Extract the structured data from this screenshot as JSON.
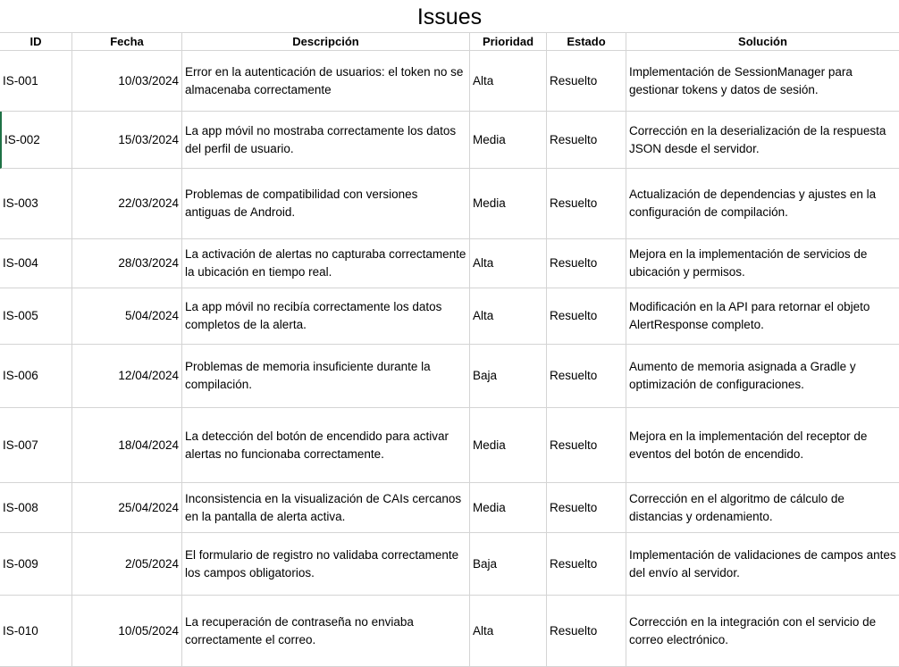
{
  "sheet": {
    "title": "Issues"
  },
  "columns": [
    "ID",
    "Fecha",
    "Descripción",
    "Prioridad",
    "Estado",
    "Solución"
  ],
  "rows": [
    {
      "id": "IS-001",
      "fecha": "10/03/2024",
      "desc": "Error en la autenticación de usuarios: el token no se almacenaba correctamente",
      "prio": "Alta",
      "estado": "Resuelto",
      "sol": "Implementación de SessionManager para gestionar tokens y datos de sesión."
    },
    {
      "id": "IS-002",
      "fecha": "15/03/2024",
      "desc": "La app móvil no mostraba correctamente los datos del perfil de usuario.",
      "prio": "Media",
      "estado": "Resuelto",
      "sol": "Corrección en la deserialización de la respuesta JSON desde el servidor."
    },
    {
      "id": "IS-003",
      "fecha": "22/03/2024",
      "desc": "Problemas de compatibilidad con versiones antiguas de Android.",
      "prio": "Media",
      "estado": "Resuelto",
      "sol": "Actualización de dependencias y ajustes en la configuración de compilación."
    },
    {
      "id": "IS-004",
      "fecha": "28/03/2024",
      "desc": "La activación de alertas no capturaba correctamente la ubicación en tiempo real.",
      "prio": "Alta",
      "estado": "Resuelto",
      "sol": "Mejora en la implementación de servicios de ubicación y permisos."
    },
    {
      "id": "IS-005",
      "fecha": "5/04/2024",
      "desc": "La app móvil no recibía correctamente los datos completos de la alerta.",
      "prio": "Alta",
      "estado": "Resuelto",
      "sol": "Modificación en la API para retornar el objeto AlertResponse completo."
    },
    {
      "id": "IS-006",
      "fecha": "12/04/2024",
      "desc": "Problemas de memoria insuficiente durante la compilación.",
      "prio": "Baja",
      "estado": "Resuelto",
      "sol": "Aumento de memoria asignada a Gradle y optimización de configuraciones."
    },
    {
      "id": "IS-007",
      "fecha": "18/04/2024",
      "desc": "La detección del botón de encendido para activar alertas no funcionaba correctamente.",
      "prio": "Media",
      "estado": "Resuelto",
      "sol": "Mejora en la implementación del receptor de eventos del botón de encendido."
    },
    {
      "id": "IS-008",
      "fecha": "25/04/2024",
      "desc": "Inconsistencia en la visualización de CAIs cercanos en la pantalla de alerta activa.",
      "prio": "Media",
      "estado": "Resuelto",
      "sol": "Corrección en el algoritmo de cálculo de distancias y ordenamiento."
    },
    {
      "id": "IS-009",
      "fecha": "2/05/2024",
      "desc": "El formulario de registro no validaba correctamente los campos obligatorios.",
      "prio": "Baja",
      "estado": "Resuelto",
      "sol": "Implementación de validaciones de campos antes del envío al servidor."
    },
    {
      "id": "IS-010",
      "fecha": "10/05/2024",
      "desc": "La recuperación de contraseña no enviaba correctamente el correo.",
      "prio": "Alta",
      "estado": "Resuelto",
      "sol": "Corrección en la integración con el servicio de correo electrónico."
    }
  ],
  "colors": {
    "gridline": "#d4d4d4",
    "selection": "#1e7145"
  }
}
